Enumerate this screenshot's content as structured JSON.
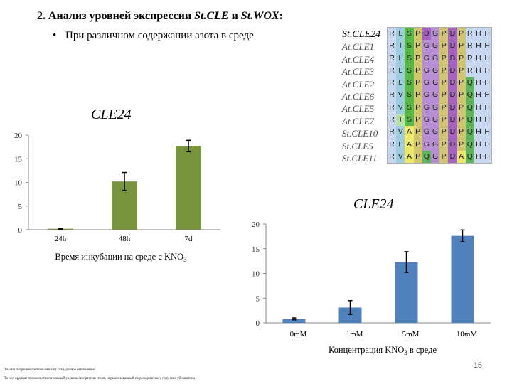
{
  "heading": {
    "number": "2.",
    "text_prefix": "Анализ уровней  экспрессии ",
    "gene1": "St.CLE",
    "conj": " и ",
    "gene2": "St.WOX",
    "colon": ":"
  },
  "subbullet": {
    "bullet": "•",
    "text": "При различном содержании азота в среде"
  },
  "alignment": {
    "names": [
      "St.CLE24",
      "At.CLE1",
      "At.CLE4",
      "At.CLE3",
      "At.CLE2",
      "At.CLE6",
      "At.CLE5",
      "At.CLE7",
      "St.CLE10",
      "St.CLE5",
      "St.CLE11"
    ],
    "sequences": [
      [
        "R",
        "L",
        "S",
        "P",
        "D",
        "G",
        "P",
        "D",
        "P",
        "R",
        "H",
        "H"
      ],
      [
        "R",
        "I",
        "S",
        "P",
        "G",
        "G",
        "P",
        "D",
        "P",
        "R",
        "H",
        "H"
      ],
      [
        "R",
        "L",
        "S",
        "P",
        "G",
        "G",
        "P",
        "D",
        "P",
        "R",
        "H",
        "H"
      ],
      [
        "R",
        "L",
        "S",
        "P",
        "G",
        "G",
        "P",
        "D",
        "P",
        "R",
        "H",
        "H"
      ],
      [
        "R",
        "L",
        "S",
        "P",
        "G",
        "G",
        "P",
        "D",
        "P",
        "Q",
        "H",
        "H"
      ],
      [
        "R",
        "V",
        "S",
        "P",
        "G",
        "G",
        "P",
        "D",
        "P",
        "Q",
        "H",
        "H"
      ],
      [
        "R",
        "V",
        "S",
        "P",
        "G",
        "G",
        "P",
        "D",
        "P",
        "Q",
        "H",
        "H"
      ],
      [
        "R",
        "T",
        "S",
        "P",
        "G",
        "G",
        "P",
        "D",
        "P",
        "Q",
        "H",
        "H"
      ],
      [
        "R",
        "V",
        "A",
        "P",
        "G",
        "G",
        "P",
        "D",
        "P",
        "Q",
        "H",
        "H"
      ],
      [
        "R",
        "L",
        "A",
        "P",
        "G",
        "G",
        "P",
        "D",
        "P",
        "Q",
        "H",
        "H"
      ],
      [
        "R",
        "V",
        "A",
        "P",
        "Q",
        "G",
        "P",
        "D",
        "A",
        "Q",
        "H",
        "H"
      ]
    ],
    "residue_colors": {
      "R": "#c6d7ef",
      "L": "#9fcde0",
      "I": "#9fcde0",
      "V": "#9fcde0",
      "T": "#b7e1a6",
      "S": "#57b846",
      "A": "#ede76a",
      "P": "#d0c66e",
      "G": "#b98fd3",
      "D": "#a463c2",
      "Q": "#5fb35a",
      "H": "#c6d7ef"
    }
  },
  "chart_data": [
    {
      "type": "bar",
      "title": "CLE24",
      "categories": [
        "24h",
        "48h",
        "7d"
      ],
      "values": [
        0.2,
        10.2,
        17.7
      ],
      "errors": [
        0.1,
        1.9,
        1.2
      ],
      "ylim": [
        0,
        20
      ],
      "yticks": [
        0,
        5,
        10,
        15,
        20
      ],
      "xlabel": "Время инкубации на среде с KNO",
      "xlabel_sub": "3",
      "ylabel": "",
      "color": "#77933c"
    },
    {
      "type": "bar",
      "title": "CLE24",
      "categories": [
        "0mM",
        "1mM",
        "5mM",
        "10mM"
      ],
      "values": [
        0.8,
        3.1,
        12.3,
        17.6
      ],
      "errors": [
        0.2,
        1.4,
        2.1,
        1.2
      ],
      "ylim": [
        0,
        20
      ],
      "yticks": [
        0,
        5,
        10,
        15,
        20
      ],
      "xlabel": "Концентрация KNO",
      "xlabel_sub": "3",
      "xlabel_suffix": " в среде",
      "ylabel": "",
      "color": "#4f81bd"
    }
  ],
  "footnotes": [
    "Планки погрешностей показывают стандартное отклонение",
    "По оси ординат отложен относительный уровень экспрессии генов, нормализованный по референсному гену гена убиквитина"
  ],
  "page_number": "15"
}
